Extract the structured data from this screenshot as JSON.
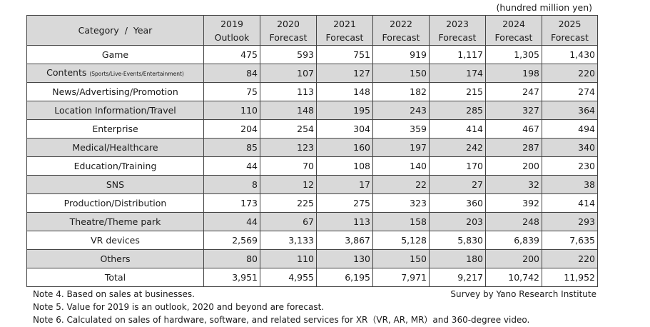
{
  "unit_label": "(hundred million yen)",
  "header": {
    "category": "Category  /  Year",
    "years": [
      {
        "year": "2019",
        "kind": "Outlook"
      },
      {
        "year": "2020",
        "kind": "Forecast"
      },
      {
        "year": "2021",
        "kind": "Forecast"
      },
      {
        "year": "2022",
        "kind": "Forecast"
      },
      {
        "year": "2023",
        "kind": "Forecast"
      },
      {
        "year": "2024",
        "kind": "Forecast"
      },
      {
        "year": "2025",
        "kind": "Forecast"
      }
    ]
  },
  "rows": [
    {
      "label": "Game",
      "sub": "",
      "values": [
        "475",
        "593",
        "751",
        "919",
        "1,117",
        "1,305",
        "1,430"
      ]
    },
    {
      "label": "Contents",
      "sub": "(Sports/Live-Events/Entertainment)",
      "values": [
        "84",
        "107",
        "127",
        "150",
        "174",
        "198",
        "220"
      ]
    },
    {
      "label": "News/Advertising/Promotion",
      "sub": "",
      "values": [
        "75",
        "113",
        "148",
        "182",
        "215",
        "247",
        "274"
      ]
    },
    {
      "label": "Location Information/Travel",
      "sub": "",
      "values": [
        "110",
        "148",
        "195",
        "243",
        "285",
        "327",
        "364"
      ]
    },
    {
      "label": "Enterprise",
      "sub": "",
      "values": [
        "204",
        "254",
        "304",
        "359",
        "414",
        "467",
        "494"
      ]
    },
    {
      "label": "Medical/Healthcare",
      "sub": "",
      "values": [
        "85",
        "123",
        "160",
        "197",
        "242",
        "287",
        "340"
      ]
    },
    {
      "label": "Education/Training",
      "sub": "",
      "values": [
        "44",
        "70",
        "108",
        "140",
        "170",
        "200",
        "230"
      ]
    },
    {
      "label": "SNS",
      "sub": "",
      "values": [
        "8",
        "12",
        "17",
        "22",
        "27",
        "32",
        "38"
      ]
    },
    {
      "label": "Production/Distribution",
      "sub": "",
      "values": [
        "173",
        "225",
        "275",
        "323",
        "360",
        "392",
        "414"
      ]
    },
    {
      "label": "Theatre/Theme park",
      "sub": "",
      "values": [
        "44",
        "67",
        "113",
        "158",
        "203",
        "248",
        "293"
      ]
    },
    {
      "label": "VR devices",
      "sub": "",
      "values": [
        "2,569",
        "3,133",
        "3,867",
        "5,128",
        "5,830",
        "6,839",
        "7,635"
      ]
    },
    {
      "label": "Others",
      "sub": "",
      "values": [
        "80",
        "110",
        "130",
        "150",
        "180",
        "200",
        "220"
      ]
    },
    {
      "label": "Total",
      "sub": "",
      "values": [
        "3,951",
        "4,955",
        "6,195",
        "7,971",
        "9,217",
        "10,742",
        "11,952"
      ]
    }
  ],
  "notes": [
    "Note 4.  Based on sales at businesses.",
    "Note 5.  Value for 2019 is an outlook, 2020 and beyond are forecast.",
    "Note 6.  Calculated on sales of hardware, software, and related services for XR（VR, AR, MR）and 360-degree video."
  ],
  "credit": "Survey by Yano Research Institute"
}
